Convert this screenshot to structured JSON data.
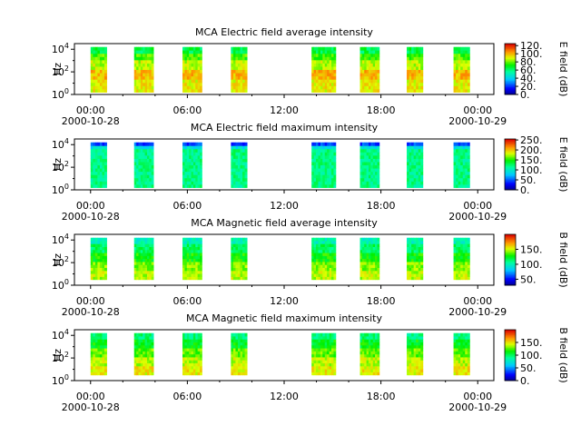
{
  "chart_data": [
    {
      "type": "heatmap",
      "title": "MCA  Electric field average intensity",
      "ylabel": "Hz",
      "y_ticks": [
        "10^0",
        "10^2",
        "10^4"
      ],
      "ylim_log10": [
        0,
        4.5
      ],
      "x_ticks": [
        "00:00",
        "06:00",
        "12:00",
        "18:00",
        "00:00"
      ],
      "x_date_labels": [
        "2000-10-28",
        "2000-10-29"
      ],
      "xlim_hours": [
        -1,
        25
      ],
      "colorbar": {
        "label": "E field (dB)",
        "ticks": [
          "0.",
          "20.",
          "40.",
          "60.",
          "80.",
          "100.",
          "120."
        ],
        "range": [
          0,
          125
        ]
      },
      "data_blocks_hours": [
        [
          0,
          1
        ],
        [
          2.7,
          3.9
        ],
        [
          5.7,
          6.9
        ],
        [
          8.7,
          9.7
        ],
        [
          13.7,
          15.2
        ],
        [
          16.7,
          17.9
        ],
        [
          19.6,
          20.6
        ],
        [
          22.5,
          23.5
        ]
      ],
      "freq_range_log10": [
        0.2,
        4.2
      ],
      "profile": "avgE"
    },
    {
      "type": "heatmap",
      "title": "MCA  Electric field maximum intensity",
      "ylabel": "Hz",
      "y_ticks": [
        "10^0",
        "10^2",
        "10^4"
      ],
      "ylim_log10": [
        0,
        4.5
      ],
      "x_ticks": [
        "00:00",
        "06:00",
        "12:00",
        "18:00",
        "00:00"
      ],
      "x_date_labels": [
        "2000-10-28",
        "2000-10-29"
      ],
      "xlim_hours": [
        -1,
        25
      ],
      "colorbar": {
        "label": "E field (dB)",
        "ticks": [
          "0.",
          "50.",
          "100.",
          "150.",
          "200.",
          "250."
        ],
        "range": [
          0,
          255
        ]
      },
      "data_blocks_hours": [
        [
          0,
          1
        ],
        [
          2.7,
          3.9
        ],
        [
          5.7,
          6.9
        ],
        [
          8.7,
          9.7
        ],
        [
          13.7,
          15.2
        ],
        [
          16.7,
          17.9
        ],
        [
          19.6,
          20.6
        ],
        [
          22.5,
          23.5
        ]
      ],
      "freq_range_log10": [
        0.2,
        4.2
      ],
      "profile": "maxE"
    },
    {
      "type": "heatmap",
      "title": "MCA  Magnetic field average intensity",
      "ylabel": "Hz",
      "y_ticks": [
        "10^0",
        "10^2",
        "10^4"
      ],
      "ylim_log10": [
        0,
        4.5
      ],
      "x_ticks": [
        "00:00",
        "06:00",
        "12:00",
        "18:00",
        "00:00"
      ],
      "x_date_labels": [
        "2000-10-28",
        "2000-10-29"
      ],
      "xlim_hours": [
        -1,
        25
      ],
      "colorbar": {
        "label": "B field (dB)",
        "ticks": [
          "50.",
          "100.",
          "150."
        ],
        "range": [
          30,
          200
        ]
      },
      "data_blocks_hours": [
        [
          0,
          1
        ],
        [
          2.7,
          3.9
        ],
        [
          5.7,
          6.9
        ],
        [
          8.7,
          9.7
        ],
        [
          13.7,
          15.2
        ],
        [
          16.7,
          17.9
        ],
        [
          19.6,
          20.6
        ],
        [
          22.5,
          23.5
        ]
      ],
      "freq_range_log10": [
        0.5,
        4.2
      ],
      "profile": "avgB"
    },
    {
      "type": "heatmap",
      "title": "MCA  Magnetic field maximum intensity",
      "ylabel": "Hz",
      "y_ticks": [
        "10^0",
        "10^2",
        "10^4"
      ],
      "ylim_log10": [
        0,
        4.5
      ],
      "x_ticks": [
        "00:00",
        "06:00",
        "12:00",
        "18:00",
        "00:00"
      ],
      "x_date_labels": [
        "2000-10-28",
        "2000-10-29"
      ],
      "xlim_hours": [
        -1,
        25
      ],
      "colorbar": {
        "label": "B field (dB)",
        "ticks": [
          "0.",
          "50.",
          "100.",
          "150."
        ],
        "range": [
          0,
          200
        ]
      },
      "data_blocks_hours": [
        [
          0,
          1
        ],
        [
          2.7,
          3.9
        ],
        [
          5.7,
          6.9
        ],
        [
          8.7,
          9.7
        ],
        [
          13.7,
          15.2
        ],
        [
          16.7,
          17.9
        ],
        [
          19.6,
          20.6
        ],
        [
          22.5,
          23.5
        ]
      ],
      "freq_range_log10": [
        0.5,
        4.2
      ],
      "profile": "maxB"
    }
  ]
}
